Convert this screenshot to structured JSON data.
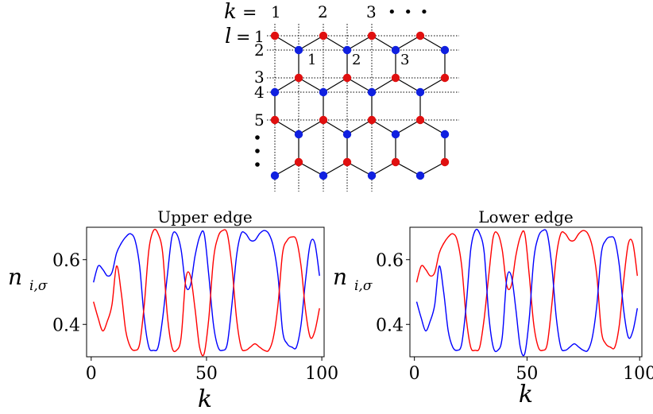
{
  "lattice": {
    "k_label": "k",
    "l_label": "l",
    "equals": "=",
    "k_ticks": [
      "1",
      "2",
      "3"
    ],
    "l_ticks": [
      "1",
      "2",
      "3",
      "4",
      "5"
    ],
    "hex_numbers": [
      "1",
      "2",
      "3"
    ],
    "ellipsis": "• • •",
    "colors": {
      "red": "#e01010",
      "blue": "#1020e0"
    }
  },
  "chart_data": [
    {
      "type": "line",
      "title": "Upper edge",
      "xlabel": "k",
      "ylabel": "n",
      "ylabel_sub": "i,σ",
      "xlim": [
        -2,
        101
      ],
      "ylim": [
        0.3,
        0.7
      ],
      "xticks": [
        0,
        50,
        100
      ],
      "yticks": [
        0.4,
        0.6
      ],
      "series": [
        {
          "color": "#0000ff",
          "x": [
            1,
            3,
            5,
            7,
            9,
            11,
            13,
            15,
            17,
            19,
            21,
            23,
            25,
            27,
            29,
            31,
            33,
            35,
            37,
            39,
            41,
            43,
            45,
            47,
            49,
            51,
            53,
            55,
            57,
            59,
            61,
            63,
            65,
            67,
            69,
            71,
            73,
            75,
            77,
            79,
            81,
            83,
            85,
            87,
            89,
            91,
            93,
            95,
            97,
            99
          ],
          "y": [
            0.53,
            0.58,
            0.57,
            0.55,
            0.56,
            0.62,
            0.65,
            0.67,
            0.68,
            0.66,
            0.58,
            0.42,
            0.33,
            0.32,
            0.33,
            0.42,
            0.55,
            0.67,
            0.68,
            0.63,
            0.52,
            0.52,
            0.61,
            0.67,
            0.68,
            0.55,
            0.4,
            0.33,
            0.32,
            0.34,
            0.46,
            0.61,
            0.68,
            0.68,
            0.66,
            0.66,
            0.68,
            0.69,
            0.68,
            0.64,
            0.55,
            0.38,
            0.34,
            0.33,
            0.33,
            0.4,
            0.54,
            0.65,
            0.65,
            0.55
          ]
        },
        {
          "color": "#ff0000",
          "x": [
            1,
            3,
            5,
            7,
            9,
            11,
            13,
            15,
            17,
            19,
            21,
            23,
            25,
            27,
            29,
            31,
            33,
            35,
            37,
            39,
            41,
            43,
            45,
            47,
            49,
            51,
            53,
            55,
            57,
            59,
            61,
            63,
            65,
            67,
            69,
            71,
            73,
            75,
            77,
            79,
            81,
            83,
            85,
            87,
            89,
            91,
            93,
            95,
            97,
            99
          ],
          "y": [
            0.47,
            0.42,
            0.38,
            0.41,
            0.46,
            0.58,
            0.5,
            0.38,
            0.33,
            0.32,
            0.34,
            0.46,
            0.63,
            0.69,
            0.68,
            0.62,
            0.43,
            0.33,
            0.32,
            0.36,
            0.54,
            0.55,
            0.45,
            0.33,
            0.31,
            0.42,
            0.6,
            0.67,
            0.69,
            0.68,
            0.58,
            0.42,
            0.33,
            0.32,
            0.33,
            0.34,
            0.33,
            0.32,
            0.32,
            0.36,
            0.46,
            0.62,
            0.66,
            0.67,
            0.66,
            0.58,
            0.44,
            0.36,
            0.38,
            0.45
          ]
        }
      ]
    },
    {
      "type": "line",
      "title": "Lower edge",
      "xlabel": "k",
      "ylabel": "n",
      "ylabel_sub": "i,σ",
      "xlim": [
        -2,
        101
      ],
      "ylim": [
        0.3,
        0.7
      ],
      "xticks": [
        0,
        50,
        100
      ],
      "yticks": [
        0.4,
        0.6
      ],
      "series": [
        {
          "color": "#ff0000",
          "x": [
            1,
            3,
            5,
            7,
            9,
            11,
            13,
            15,
            17,
            19,
            21,
            23,
            25,
            27,
            29,
            31,
            33,
            35,
            37,
            39,
            41,
            43,
            45,
            47,
            49,
            51,
            53,
            55,
            57,
            59,
            61,
            63,
            65,
            67,
            69,
            71,
            73,
            75,
            77,
            79,
            81,
            83,
            85,
            87,
            89,
            91,
            93,
            95,
            97,
            99
          ],
          "y": [
            0.53,
            0.58,
            0.57,
            0.55,
            0.56,
            0.62,
            0.65,
            0.67,
            0.68,
            0.66,
            0.58,
            0.42,
            0.33,
            0.32,
            0.33,
            0.42,
            0.55,
            0.67,
            0.68,
            0.63,
            0.52,
            0.52,
            0.61,
            0.67,
            0.68,
            0.55,
            0.4,
            0.33,
            0.32,
            0.34,
            0.46,
            0.61,
            0.68,
            0.68,
            0.66,
            0.66,
            0.68,
            0.69,
            0.68,
            0.64,
            0.55,
            0.38,
            0.34,
            0.33,
            0.33,
            0.4,
            0.54,
            0.65,
            0.65,
            0.55
          ]
        },
        {
          "color": "#0000ff",
          "x": [
            1,
            3,
            5,
            7,
            9,
            11,
            13,
            15,
            17,
            19,
            21,
            23,
            25,
            27,
            29,
            31,
            33,
            35,
            37,
            39,
            41,
            43,
            45,
            47,
            49,
            51,
            53,
            55,
            57,
            59,
            61,
            63,
            65,
            67,
            69,
            71,
            73,
            75,
            77,
            79,
            81,
            83,
            85,
            87,
            89,
            91,
            93,
            95,
            97,
            99
          ],
          "y": [
            0.47,
            0.42,
            0.38,
            0.41,
            0.46,
            0.58,
            0.5,
            0.38,
            0.33,
            0.32,
            0.34,
            0.46,
            0.63,
            0.69,
            0.68,
            0.62,
            0.43,
            0.33,
            0.32,
            0.36,
            0.54,
            0.55,
            0.45,
            0.33,
            0.31,
            0.42,
            0.6,
            0.67,
            0.69,
            0.68,
            0.58,
            0.42,
            0.33,
            0.32,
            0.33,
            0.34,
            0.33,
            0.32,
            0.32,
            0.36,
            0.46,
            0.62,
            0.66,
            0.67,
            0.66,
            0.58,
            0.44,
            0.36,
            0.38,
            0.45
          ]
        }
      ]
    }
  ]
}
